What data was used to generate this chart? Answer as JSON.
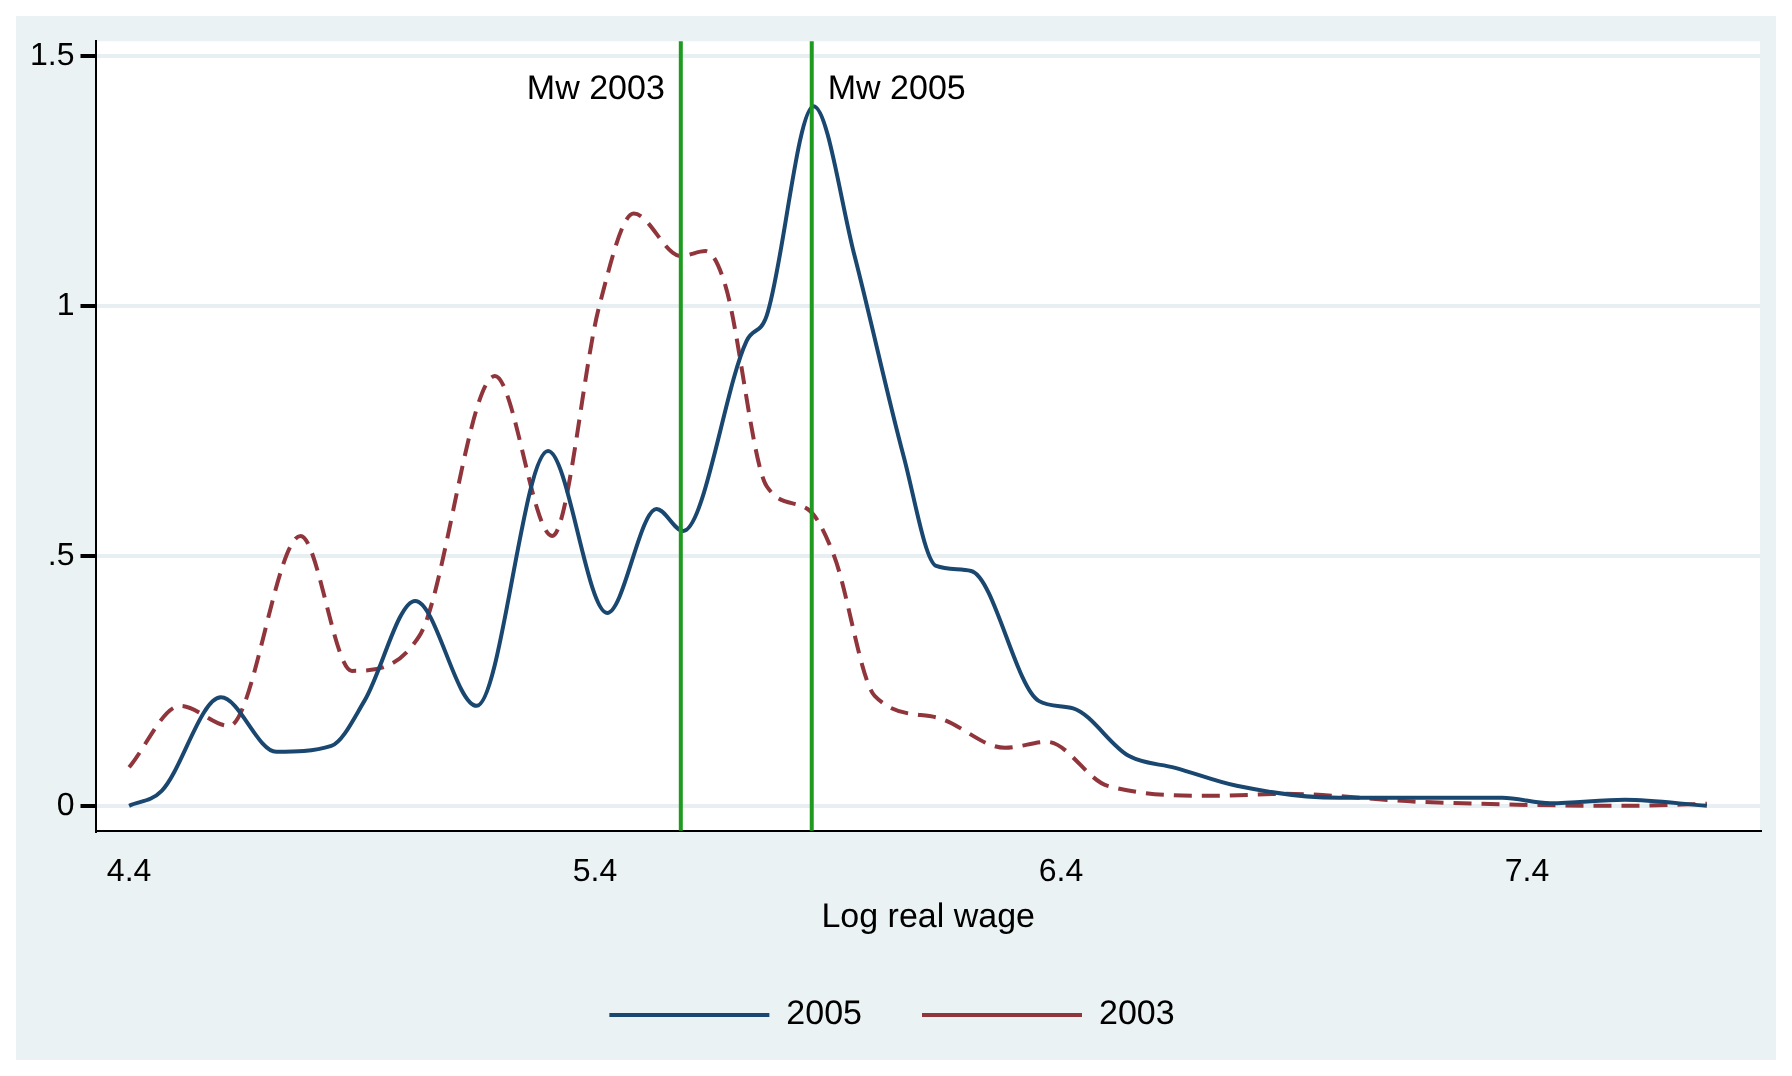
{
  "chart_data": {
    "type": "line",
    "xlabel": "Log real wage",
    "xlim": [
      4.33,
      7.9
    ],
    "xticks": [
      4.4,
      5.4,
      6.4,
      7.4
    ],
    "ylim": [
      -0.05,
      1.53
    ],
    "yticks": [
      0,
      {
        "value": 0.5,
        "label": ".5"
      },
      1,
      1.5
    ],
    "grid": "y",
    "legend": "bottom",
    "series": [
      {
        "name": "2005",
        "color": "#1a476f",
        "line_style": "solid",
        "x": [
          4.4,
          4.47,
          4.597,
          4.716,
          4.834,
          4.905,
          5.014,
          5.146,
          5.299,
          5.426,
          5.532,
          5.589,
          5.725,
          5.768,
          5.869,
          5.957,
          6.062,
          6.132,
          6.207,
          6.352,
          6.426,
          6.545,
          6.645,
          6.777,
          6.996,
          7.347,
          7.45,
          7.61,
          7.786
        ],
        "values": [
          0,
          0.03,
          0.217,
          0.108,
          0.12,
          0.21,
          0.41,
          0.2,
          0.71,
          0.386,
          0.594,
          0.55,
          0.93,
          0.98,
          1.4,
          1.1,
          0.7,
          0.48,
          0.47,
          0.21,
          0.195,
          0.1,
          0.076,
          0.04,
          0.016,
          0.016,
          0.005,
          0.012,
          0
        ]
      },
      {
        "name": "2003",
        "color": "#90353b",
        "line_style": "dashed",
        "x": [
          4.4,
          4.51,
          4.615,
          4.768,
          4.878,
          5.023,
          5.185,
          5.308,
          5.409,
          5.483,
          5.584,
          5.637,
          5.68,
          5.768,
          5.856,
          5.913,
          6.0,
          6.132,
          6.28,
          6.37,
          6.5,
          6.73,
          6.88,
          7.17,
          7.61,
          7.786
        ],
        "values": [
          0.077,
          0.2,
          0.16,
          0.54,
          0.27,
          0.34,
          0.86,
          0.54,
          1.0,
          1.185,
          1.1,
          1.11,
          1.04,
          0.64,
          0.594,
          0.5,
          0.22,
          0.177,
          0.116,
          0.128,
          0.04,
          0.02,
          0.024,
          0.008,
          0,
          0.004
        ]
      }
    ],
    "ref_lines": [
      {
        "axis": "x",
        "value": 5.584,
        "label": "Mw 2003",
        "color": "#1e9a1e"
      },
      {
        "axis": "x",
        "value": 5.865,
        "label": "Mw 2005",
        "color": "#1e9a1e"
      }
    ]
  }
}
